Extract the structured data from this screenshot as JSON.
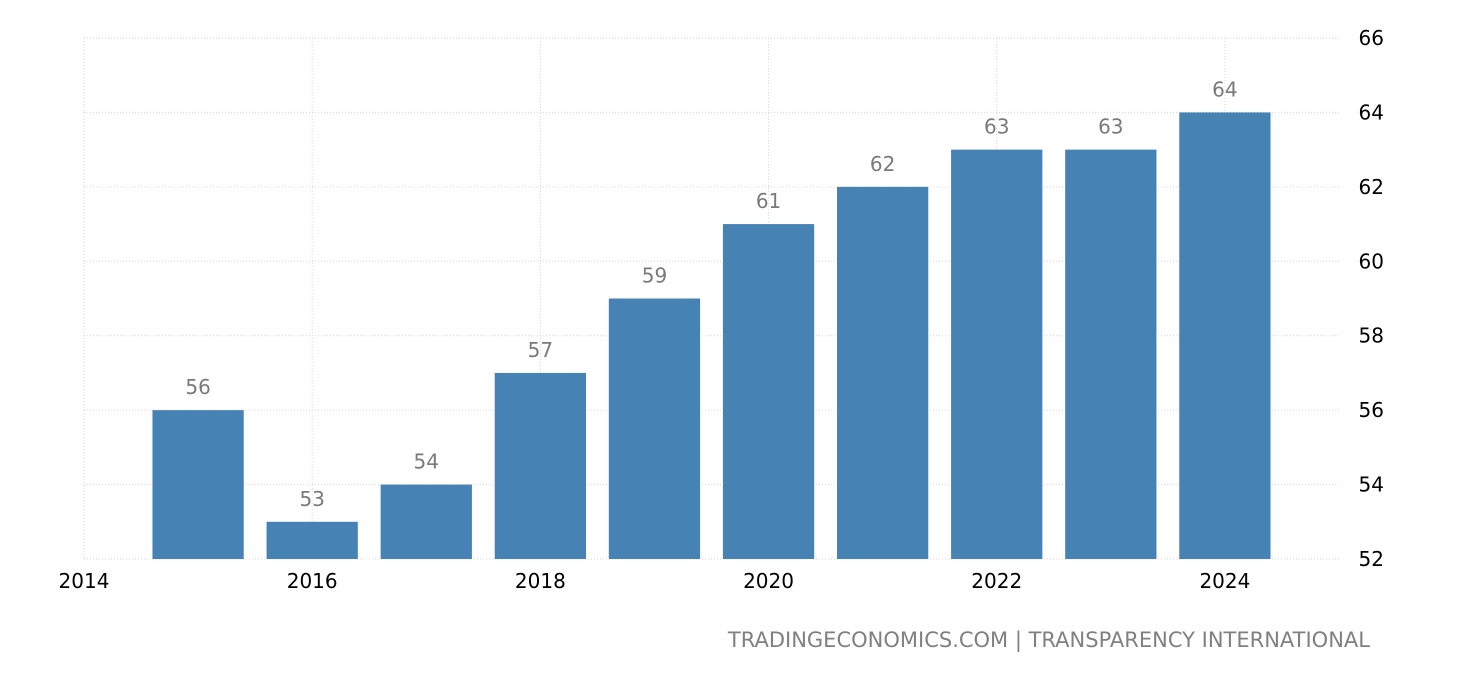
{
  "chart_data": {
    "type": "bar",
    "categories": [
      "2015",
      "2016",
      "2017",
      "2018",
      "2019",
      "2020",
      "2021",
      "2022",
      "2023",
      "2024"
    ],
    "values": [
      56,
      53,
      54,
      57,
      59,
      61,
      62,
      63,
      63,
      64
    ],
    "x_ticks": [
      "2014",
      "2016",
      "2018",
      "2020",
      "2022",
      "2024"
    ],
    "y_ticks": [
      52,
      54,
      56,
      58,
      60,
      62,
      64,
      66
    ],
    "ylim": [
      52,
      66
    ],
    "xlim": [
      2014,
      2025
    ],
    "title": "",
    "xlabel": "",
    "ylabel": "",
    "grid": true,
    "y_axis_side": "right",
    "bar_color": "#4682b4",
    "label_color": "#7a7a7a"
  },
  "source": "TRADINGECONOMICS.COM | TRANSPARENCY INTERNATIONAL"
}
